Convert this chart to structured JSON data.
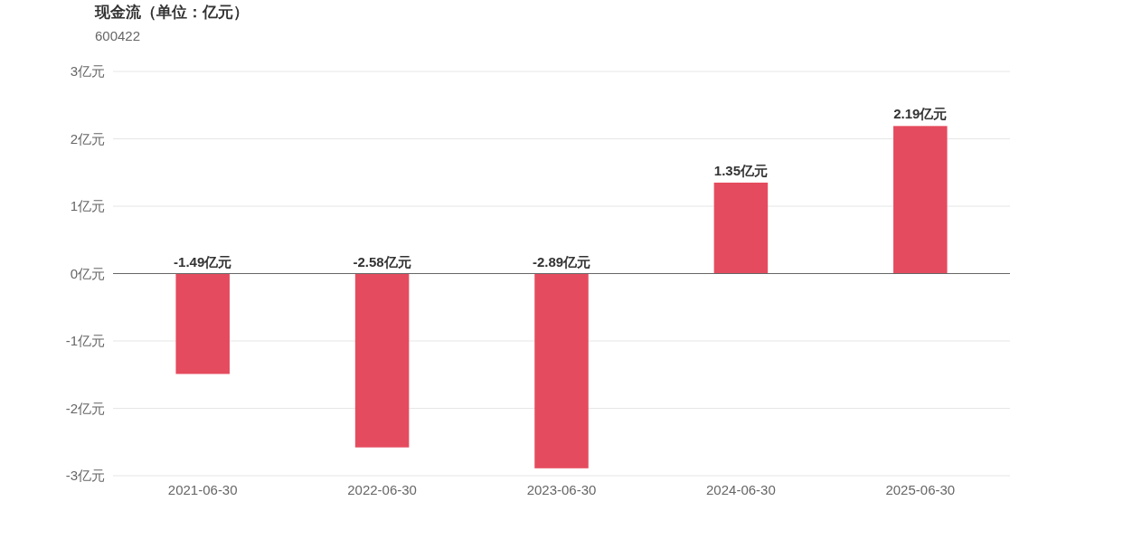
{
  "chart_data": {
    "type": "bar",
    "title": "现金流（单位：亿元）",
    "subtitle": "600422",
    "categories": [
      "2021-06-30",
      "2022-06-30",
      "2023-06-30",
      "2024-06-30",
      "2025-06-30"
    ],
    "values": [
      -1.49,
      -2.58,
      -2.89,
      1.35,
      2.19
    ],
    "value_labels": [
      "-1.49亿元",
      "-2.58亿元",
      "-2.89亿元",
      "1.35亿元",
      "2.19亿元"
    ],
    "color": "#e54b5e",
    "ylim": [
      -3,
      3
    ],
    "yticks": [
      {
        "value": -3,
        "label": "-3亿元"
      },
      {
        "value": -2,
        "label": "-2亿元"
      },
      {
        "value": -1,
        "label": "-1亿元"
      },
      {
        "value": 0,
        "label": "0亿元"
      },
      {
        "value": 1,
        "label": "1亿元"
      },
      {
        "value": 2,
        "label": "2亿元"
      },
      {
        "value": 3,
        "label": "3亿元"
      }
    ],
    "grid": "y"
  }
}
